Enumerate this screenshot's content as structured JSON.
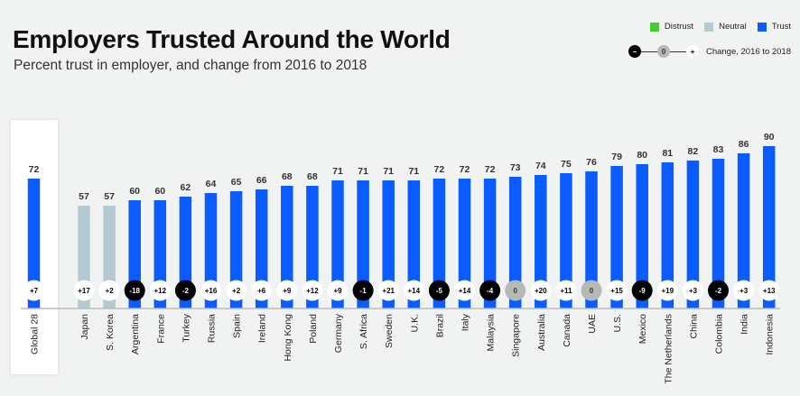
{
  "header": {
    "title": "Employers Trusted Around the World",
    "subtitle": "Percent trust in employer, and change from 2016 to 2018"
  },
  "legend": {
    "categories": [
      {
        "label": "Distrust",
        "color": "#3ecf2a"
      },
      {
        "label": "Neutral",
        "color": "#b4c9d2"
      },
      {
        "label": "Trust",
        "color": "#0a5cff"
      }
    ],
    "change_scale": {
      "minus": "−",
      "zero": "0",
      "plus": "+",
      "label": "Change, 2016 to 2018"
    }
  },
  "colors": {
    "trust": "#0a5cff",
    "neutral": "#b4c9d2",
    "distrust": "#3ecf2a",
    "negative_change": "#000000",
    "zero_change": "#b7b9b7",
    "positive_change": "#ffffff",
    "axis": "#bbbbbb"
  },
  "chart_data": {
    "type": "bar",
    "title": "Employers Trusted Around the World",
    "subtitle": "Percent trust in employer, and change from 2016 to 2018",
    "xlabel": "",
    "ylabel": "Percent trust in employer",
    "ylim": [
      0,
      100
    ],
    "grid": false,
    "legend_position": "top-right",
    "categories": [
      "Global 28",
      "Japan",
      "S. Korea",
      "Argentina",
      "France",
      "Turkey",
      "Russia",
      "Spain",
      "Ireland",
      "Hong Kong",
      "Poland",
      "Germany",
      "S. Africa",
      "Sweden",
      "U.K.",
      "Brazil",
      "Italy",
      "Malaysia",
      "Singapore",
      "Australia",
      "Canada",
      "UAE",
      "U.S.",
      "Mexico",
      "The Netherlands",
      "China",
      "Colombia",
      "India",
      "Indonesia"
    ],
    "series": [
      {
        "name": "Trust (%)",
        "values": [
          72,
          57,
          57,
          60,
          60,
          62,
          64,
          65,
          66,
          68,
          68,
          71,
          71,
          71,
          71,
          72,
          72,
          72,
          73,
          74,
          75,
          76,
          79,
          80,
          81,
          82,
          83,
          86,
          90
        ]
      },
      {
        "name": "Change, 2016 to 2018",
        "values": [
          7,
          17,
          2,
          -18,
          12,
          -2,
          16,
          2,
          6,
          9,
          12,
          9,
          -1,
          21,
          14,
          -5,
          14,
          -4,
          0,
          20,
          11,
          0,
          15,
          -9,
          19,
          3,
          -2,
          3,
          13
        ]
      }
    ],
    "trust_level": [
      "trust",
      "neutral",
      "neutral",
      "trust",
      "trust",
      "trust",
      "trust",
      "trust",
      "trust",
      "trust",
      "trust",
      "trust",
      "trust",
      "trust",
      "trust",
      "trust",
      "trust",
      "trust",
      "trust",
      "trust",
      "trust",
      "trust",
      "trust",
      "trust",
      "trust",
      "trust",
      "trust",
      "trust",
      "trust"
    ],
    "change_labels": [
      "+7",
      "+17",
      "+2",
      "-18",
      "+12",
      "-2",
      "+16",
      "+2",
      "+6",
      "+9",
      "+12",
      "+9",
      "-1",
      "+21",
      "+14",
      "-5",
      "+14",
      "-4",
      "0",
      "+20",
      "+11",
      "0",
      "+15",
      "-9",
      "+19",
      "+3",
      "-2",
      "+3",
      "+13"
    ],
    "highlighted_category": "Global 28"
  }
}
